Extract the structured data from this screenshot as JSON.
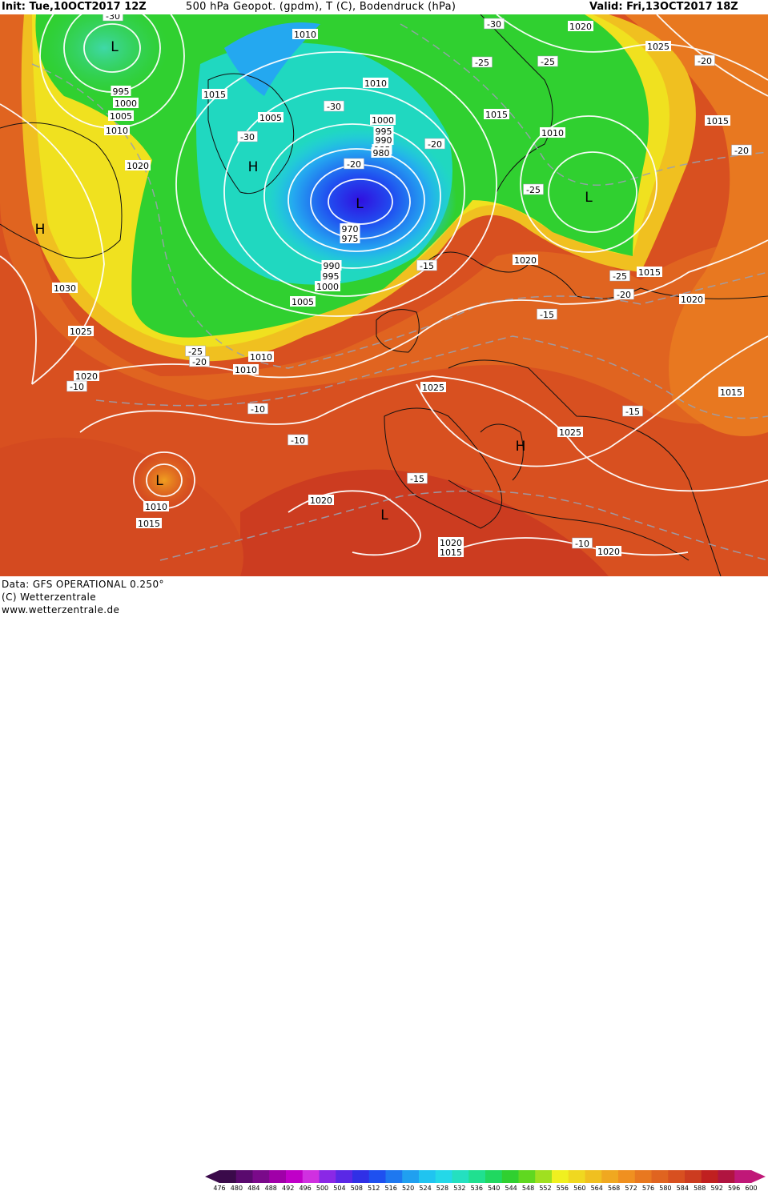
{
  "header": {
    "init": "Init: Tue,10OCT2017 12Z",
    "title": "500 hPa Geopot. (gpdm), T (C), Bodendruck (hPa)",
    "valid": "Valid: Fri,13OCT2017 18Z"
  },
  "footer": {
    "data_line": "Data: GFS OPERATIONAL 0.250°",
    "copyright": "(C) Wetterzentrale",
    "url": "www.wetterzentrale.de"
  },
  "colorbar": {
    "ticks": [
      "476",
      "480",
      "484",
      "488",
      "492",
      "496",
      "500",
      "504",
      "508",
      "512",
      "516",
      "520",
      "524",
      "528",
      "532",
      "536",
      "540",
      "544",
      "548",
      "552",
      "556",
      "560",
      "564",
      "568",
      "572",
      "576",
      "580",
      "584",
      "588",
      "592",
      "596",
      "600"
    ],
    "colors": [
      "#3a0a4a",
      "#5a0a6e",
      "#7a0a8a",
      "#a000a8",
      "#c000c8",
      "#d030e0",
      "#8a28e6",
      "#5a28e6",
      "#3030e6",
      "#1e50f0",
      "#1e78f0",
      "#20a0f0",
      "#20c4f0",
      "#24d8e8",
      "#24e0c0",
      "#20e090",
      "#20d860",
      "#30d030",
      "#60d820",
      "#a0e020",
      "#f0f020",
      "#f0d820",
      "#f0c020",
      "#f0a820",
      "#f09020",
      "#e87820",
      "#e06420",
      "#d85020",
      "#cc3c20",
      "#c02020",
      "#b01440",
      "#c01878"
    ]
  },
  "map": {
    "pressure_labels": [
      "995",
      "1000",
      "1005",
      "1010",
      "1020",
      "1010",
      "1015",
      "1005",
      "1010",
      "1000",
      "995",
      "990",
      "985",
      "980",
      "1010",
      "1015",
      "1010",
      "1020",
      "1025",
      "1015",
      "1030",
      "1025",
      "1020",
      "1005",
      "1010",
      "990",
      "995",
      "1000",
      "970",
      "975",
      "1020",
      "1015",
      "1015",
      "1020",
      "1025",
      "1025",
      "1015",
      "1010",
      "1015",
      "1020",
      "1020",
      "1020"
    ],
    "temp_labels": [
      "-30",
      "-30",
      "-25",
      "-30",
      "-25",
      "-20",
      "-20",
      "-20",
      "-25",
      "-15",
      "-15",
      "-25",
      "-20",
      "-20",
      "-25",
      "-20",
      "-10",
      "-10",
      "-10",
      "-15",
      "-15",
      "-10",
      "-30"
    ],
    "pressure_centers": [
      "L",
      "L",
      "H",
      "L",
      "H",
      "L",
      "L",
      "H"
    ]
  }
}
